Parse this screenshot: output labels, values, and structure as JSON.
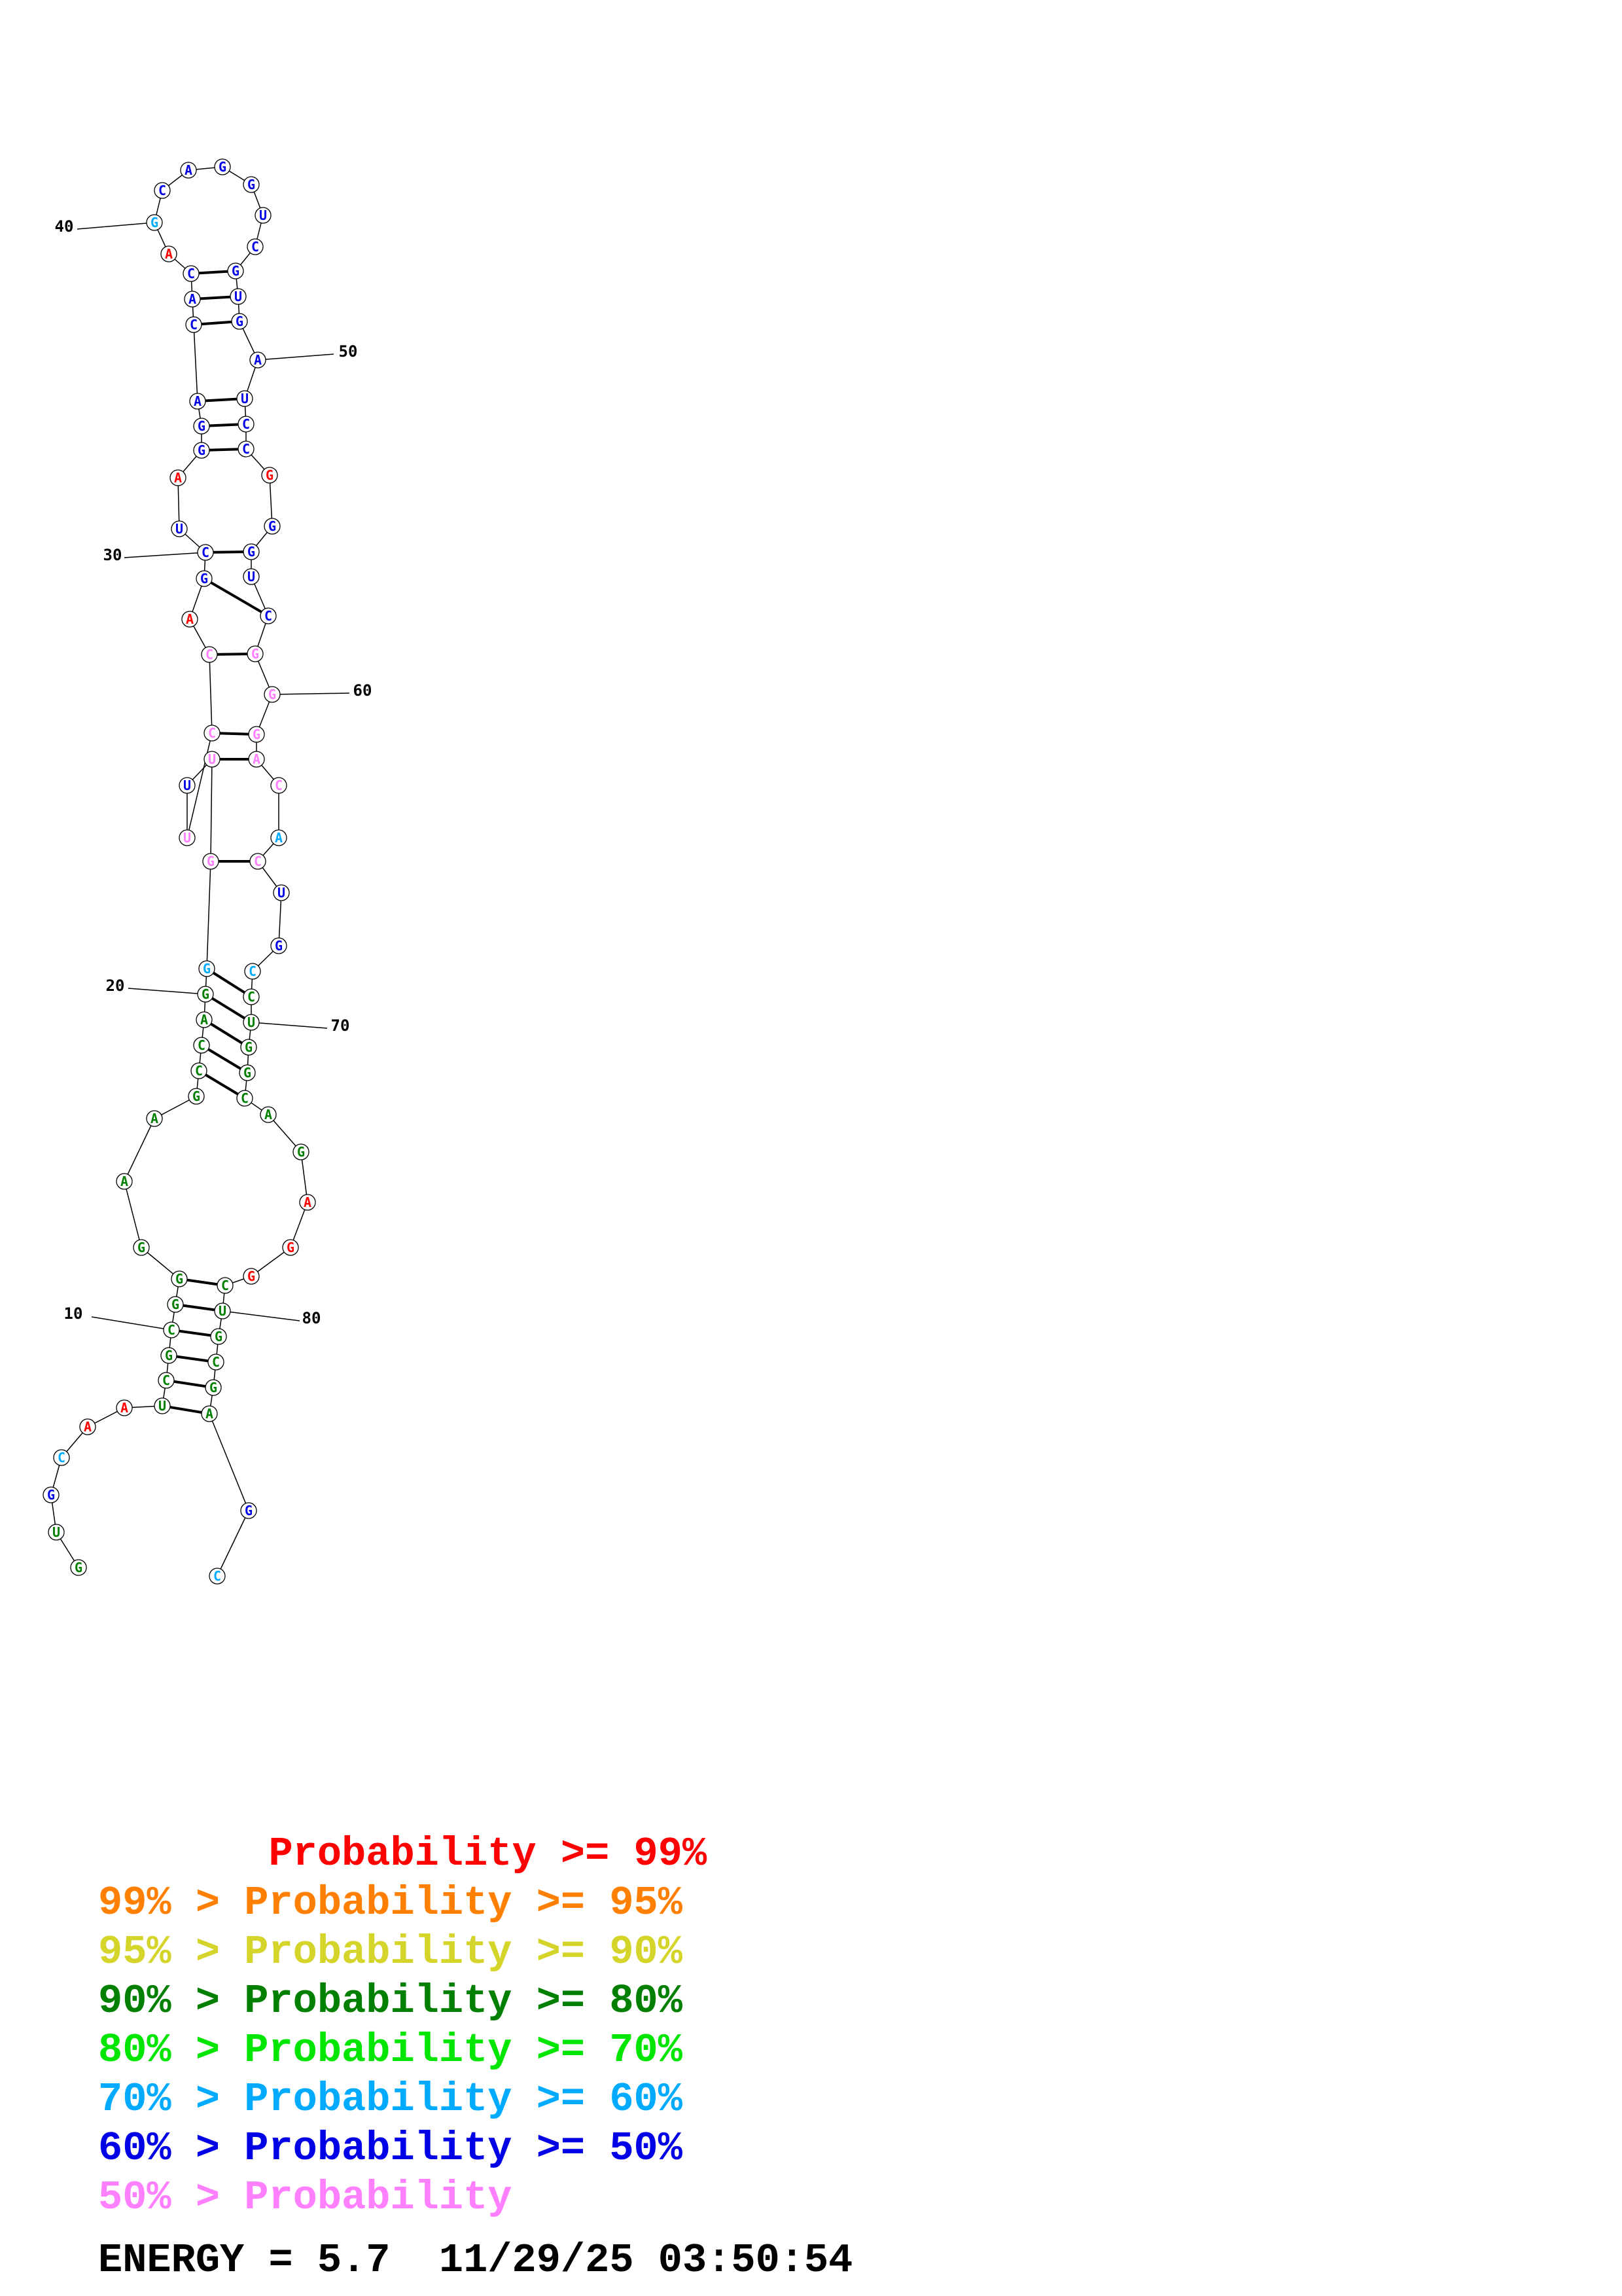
{
  "colors": {
    "p99": "#ff0000",
    "p95": "#ff7f00",
    "p90": "#d4d42a",
    "p80": "#007f00",
    "p70": "#00e600",
    "p60": "#00aaff",
    "p50": "#0000e6",
    "plow": "#ff80ff"
  },
  "nucleotides": [
    {
      "n": 1,
      "base": "G",
      "c": "p80"
    },
    {
      "n": 2,
      "base": "U",
      "c": "p80"
    },
    {
      "n": 3,
      "base": "G",
      "c": "p50"
    },
    {
      "n": 4,
      "base": "C",
      "c": "p60"
    },
    {
      "n": 5,
      "base": "A",
      "c": "p99"
    },
    {
      "n": 6,
      "base": "A",
      "c": "p99"
    },
    {
      "n": 7,
      "base": "U",
      "c": "p80"
    },
    {
      "n": 8,
      "base": "C",
      "c": "p80"
    },
    {
      "n": 9,
      "base": "G",
      "c": "p80"
    },
    {
      "n": 10,
      "base": "C",
      "c": "p80"
    },
    {
      "n": 11,
      "base": "G",
      "c": "p80"
    },
    {
      "n": 12,
      "base": "G",
      "c": "p80"
    },
    {
      "n": 13,
      "base": "G",
      "c": "p80"
    },
    {
      "n": 14,
      "base": "A",
      "c": "p80"
    },
    {
      "n": 15,
      "base": "A",
      "c": "p80"
    },
    {
      "n": 16,
      "base": "G",
      "c": "p80"
    },
    {
      "n": 17,
      "base": "C",
      "c": "p80"
    },
    {
      "n": 18,
      "base": "C",
      "c": "p80"
    },
    {
      "n": 19,
      "base": "A",
      "c": "p80"
    },
    {
      "n": 20,
      "base": "G",
      "c": "p80"
    },
    {
      "n": 21,
      "base": "G",
      "c": "p60"
    },
    {
      "n": 22,
      "base": "G",
      "c": "plow"
    },
    {
      "n": 23,
      "base": "U",
      "c": "plow"
    },
    {
      "n": 24,
      "base": "U",
      "c": "p50"
    },
    {
      "n": 25,
      "base": "U",
      "c": "plow"
    },
    {
      "n": 26,
      "base": "C",
      "c": "plow"
    },
    {
      "n": 27,
      "base": "C",
      "c": "plow"
    },
    {
      "n": 28,
      "base": "A",
      "c": "p99"
    },
    {
      "n": 29,
      "base": "G",
      "c": "p50"
    },
    {
      "n": 30,
      "base": "C",
      "c": "p50"
    },
    {
      "n": 31,
      "base": "U",
      "c": "p50"
    },
    {
      "n": 32,
      "base": "A",
      "c": "p99"
    },
    {
      "n": 33,
      "base": "G",
      "c": "p50"
    },
    {
      "n": 34,
      "base": "G",
      "c": "p50"
    },
    {
      "n": 35,
      "base": "A",
      "c": "p50"
    },
    {
      "n": 36,
      "base": "C",
      "c": "p50"
    },
    {
      "n": 37,
      "base": "A",
      "c": "p50"
    },
    {
      "n": 38,
      "base": "C",
      "c": "p50"
    },
    {
      "n": 39,
      "base": "A",
      "c": "p99"
    },
    {
      "n": 40,
      "base": "G",
      "c": "p60"
    },
    {
      "n": 41,
      "base": "C",
      "c": "p50"
    },
    {
      "n": 42,
      "base": "A",
      "c": "p50"
    },
    {
      "n": 43,
      "base": "G",
      "c": "p50"
    },
    {
      "n": 44,
      "base": "G",
      "c": "p50"
    },
    {
      "n": 45,
      "base": "U",
      "c": "p50"
    },
    {
      "n": 46,
      "base": "C",
      "c": "p50"
    },
    {
      "n": 47,
      "base": "G",
      "c": "p50"
    },
    {
      "n": 48,
      "base": "U",
      "c": "p50"
    },
    {
      "n": 49,
      "base": "G",
      "c": "p50"
    },
    {
      "n": 50,
      "base": "A",
      "c": "p50"
    },
    {
      "n": 51,
      "base": "U",
      "c": "p50"
    },
    {
      "n": 52,
      "base": "C",
      "c": "p50"
    },
    {
      "n": 53,
      "base": "C",
      "c": "p50"
    },
    {
      "n": 54,
      "base": "G",
      "c": "p99"
    },
    {
      "n": 55,
      "base": "G",
      "c": "p50"
    },
    {
      "n": 56,
      "base": "G",
      "c": "p50"
    },
    {
      "n": 57,
      "base": "U",
      "c": "p50"
    },
    {
      "n": 58,
      "base": "C",
      "c": "p50"
    },
    {
      "n": 59,
      "base": "G",
      "c": "plow"
    },
    {
      "n": 60,
      "base": "G",
      "c": "plow"
    },
    {
      "n": 61,
      "base": "G",
      "c": "plow"
    },
    {
      "n": 62,
      "base": "A",
      "c": "plow"
    },
    {
      "n": 63,
      "base": "C",
      "c": "plow"
    },
    {
      "n": 64,
      "base": "A",
      "c": "p60"
    },
    {
      "n": 65,
      "base": "C",
      "c": "plow"
    },
    {
      "n": 66,
      "base": "U",
      "c": "p50"
    },
    {
      "n": 67,
      "base": "G",
      "c": "p50"
    },
    {
      "n": 68,
      "base": "C",
      "c": "p60"
    },
    {
      "n": 69,
      "base": "C",
      "c": "p80"
    },
    {
      "n": 70,
      "base": "U",
      "c": "p80"
    },
    {
      "n": 71,
      "base": "G",
      "c": "p80"
    },
    {
      "n": 72,
      "base": "G",
      "c": "p80"
    },
    {
      "n": 73,
      "base": "C",
      "c": "p80"
    },
    {
      "n": 74,
      "base": "A",
      "c": "p80"
    },
    {
      "n": 75,
      "base": "G",
      "c": "p80"
    },
    {
      "n": 76,
      "base": "A",
      "c": "p99"
    },
    {
      "n": 77,
      "base": "G",
      "c": "p99"
    },
    {
      "n": 78,
      "base": "G",
      "c": "p99"
    },
    {
      "n": 79,
      "base": "C",
      "c": "p80"
    },
    {
      "n": 80,
      "base": "U",
      "c": "p80"
    },
    {
      "n": 81,
      "base": "G",
      "c": "p80"
    },
    {
      "n": 82,
      "base": "C",
      "c": "p80"
    },
    {
      "n": 83,
      "base": "G",
      "c": "p80"
    },
    {
      "n": 84,
      "base": "A",
      "c": "p80"
    },
    {
      "n": 85,
      "base": "G",
      "c": "p50"
    },
    {
      "n": 86,
      "base": "C",
      "c": "p60"
    }
  ],
  "pairs": [
    [
      7,
      84
    ],
    [
      8,
      83
    ],
    [
      9,
      82
    ],
    [
      10,
      81
    ],
    [
      11,
      80
    ],
    [
      12,
      79
    ],
    [
      17,
      73
    ],
    [
      18,
      72
    ],
    [
      19,
      71
    ],
    [
      20,
      70
    ],
    [
      21,
      69
    ],
    [
      22,
      65
    ],
    [
      23,
      62
    ],
    [
      26,
      61
    ],
    [
      27,
      59
    ],
    [
      29,
      58
    ],
    [
      30,
      56
    ],
    [
      33,
      53
    ],
    [
      34,
      52
    ],
    [
      35,
      51
    ],
    [
      36,
      49
    ],
    [
      37,
      48
    ],
    [
      38,
      47
    ]
  ],
  "position_labels": [
    {
      "n": 10,
      "text": "10"
    },
    {
      "n": 20,
      "text": "20"
    },
    {
      "n": 30,
      "text": "30"
    },
    {
      "n": 40,
      "text": "40"
    },
    {
      "n": 50,
      "text": "50"
    },
    {
      "n": 60,
      "text": "60"
    },
    {
      "n": 70,
      "text": "70"
    },
    {
      "n": 80,
      "text": "80"
    }
  ],
  "legend": [
    {
      "text": "       Probability >= 99%",
      "c": "p99"
    },
    {
      "text": "99% > Probability >= 95%",
      "c": "p95"
    },
    {
      "text": "95% > Probability >= 90%",
      "c": "p90"
    },
    {
      "text": "90% > Probability >= 80%",
      "c": "p80"
    },
    {
      "text": "80% > Probability >= 70%",
      "c": "p70"
    },
    {
      "text": "70% > Probability >= 60%",
      "c": "p60"
    },
    {
      "text": "60% > Probability >= 50%",
      "c": "p50"
    },
    {
      "text": "50% > Probability",
      "c": "plow"
    }
  ],
  "footer": {
    "energy": "ENERGY = 5.7  11/29/25 03:50:54"
  }
}
